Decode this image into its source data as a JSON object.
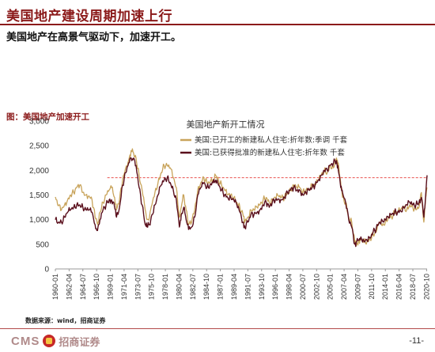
{
  "slide": {
    "title": "美国地产建设周期加速上行",
    "subtitle": "美国地产在高景气驱动下，加速开工。",
    "figure_caption": "图：美国地产加速开工",
    "source": "数据来源：wind，招商证券",
    "logo_text": "CMS",
    "logo_cn": "招商证券",
    "page_number": "-11-"
  },
  "colors": {
    "accent": "#8b1a1a",
    "series_starts": "#c8a35a",
    "series_permits": "#5a0f1c",
    "reference_line": "#e53935"
  },
  "chart_data": {
    "type": "line",
    "title": "美国地产新开工情况",
    "xlabel": "",
    "ylabel": "",
    "ylim": [
      0,
      3000
    ],
    "yticks": [
      "0",
      "500",
      "1,000",
      "1,500",
      "2,000",
      "2,500",
      "3,000"
    ],
    "xlim": [
      1960.0,
      2020.83
    ],
    "xtick_labels": [
      "1960-01",
      "1962-04",
      "1964-07",
      "1966-10",
      "1969-01",
      "1971-04",
      "1973-07",
      "1975-10",
      "1978-01",
      "1980-04",
      "1982-07",
      "1984-10",
      "1987-01",
      "1989-04",
      "1991-07",
      "1993-10",
      "1996-01",
      "1998-04",
      "2000-07",
      "2002-10",
      "2005-01",
      "2007-04",
      "2009-07",
      "2011-10",
      "2014-01",
      "2016-04",
      "2018-07",
      "2020-10"
    ],
    "reference_value": 1850,
    "grid": false,
    "legend_placement": "top-center",
    "series": [
      {
        "name": "美国:已开工的新建私人住宅:折年数:季调 千套",
        "color": "#c8a35a",
        "points": [
          [
            1960.0,
            1460
          ],
          [
            1960.5,
            1280
          ],
          [
            1961.0,
            1200
          ],
          [
            1961.5,
            1300
          ],
          [
            1962.0,
            1400
          ],
          [
            1962.5,
            1500
          ],
          [
            1963.0,
            1550
          ],
          [
            1963.5,
            1650
          ],
          [
            1964.0,
            1700
          ],
          [
            1964.5,
            1550
          ],
          [
            1965.0,
            1500
          ],
          [
            1965.5,
            1480
          ],
          [
            1966.0,
            1400
          ],
          [
            1966.5,
            1050
          ],
          [
            1966.9,
            900
          ],
          [
            1967.3,
            1150
          ],
          [
            1967.8,
            1350
          ],
          [
            1968.3,
            1500
          ],
          [
            1968.8,
            1600
          ],
          [
            1969.2,
            1650
          ],
          [
            1969.7,
            1450
          ],
          [
            1970.0,
            1200
          ],
          [
            1970.5,
            1400
          ],
          [
            1971.0,
            1800
          ],
          [
            1971.5,
            2050
          ],
          [
            1972.0,
            2200
          ],
          [
            1972.4,
            2400
          ],
          [
            1972.8,
            2350
          ],
          [
            1973.2,
            2250
          ],
          [
            1973.7,
            1900
          ],
          [
            1974.2,
            1600
          ],
          [
            1974.7,
            1200
          ],
          [
            1975.0,
            1000
          ],
          [
            1975.4,
            1050
          ],
          [
            1975.8,
            1300
          ],
          [
            1976.3,
            1550
          ],
          [
            1976.8,
            1750
          ],
          [
            1977.3,
            1950
          ],
          [
            1977.8,
            2100
          ],
          [
            1978.3,
            2100
          ],
          [
            1978.8,
            2050
          ],
          [
            1979.3,
            1850
          ],
          [
            1979.8,
            1650
          ],
          [
            1980.3,
            1050
          ],
          [
            1980.6,
            1250
          ],
          [
            1981.0,
            1500
          ],
          [
            1981.4,
            1200
          ],
          [
            1981.8,
            900
          ],
          [
            1982.3,
            950
          ],
          [
            1982.8,
            1200
          ],
          [
            1983.3,
            1600
          ],
          [
            1983.8,
            1750
          ],
          [
            1984.3,
            1850
          ],
          [
            1984.8,
            1750
          ],
          [
            1985.3,
            1750
          ],
          [
            1985.8,
            1800
          ],
          [
            1986.2,
            1900
          ],
          [
            1986.7,
            1800
          ],
          [
            1987.2,
            1700
          ],
          [
            1987.7,
            1600
          ],
          [
            1988.2,
            1500
          ],
          [
            1988.7,
            1500
          ],
          [
            1989.2,
            1450
          ],
          [
            1989.7,
            1350
          ],
          [
            1990.2,
            1250
          ],
          [
            1990.7,
            1100
          ],
          [
            1991.0,
            950
          ],
          [
            1991.5,
            1050
          ],
          [
            1992.0,
            1200
          ],
          [
            1992.5,
            1200
          ],
          [
            1993.0,
            1250
          ],
          [
            1993.5,
            1300
          ],
          [
            1994.0,
            1400
          ],
          [
            1994.5,
            1450
          ],
          [
            1995.0,
            1350
          ],
          [
            1995.5,
            1400
          ],
          [
            1996.0,
            1450
          ],
          [
            1996.5,
            1480
          ],
          [
            1997.0,
            1450
          ],
          [
            1997.5,
            1450
          ],
          [
            1998.0,
            1550
          ],
          [
            1998.5,
            1600
          ],
          [
            1999.0,
            1700
          ],
          [
            1999.5,
            1650
          ],
          [
            2000.0,
            1650
          ],
          [
            2000.5,
            1550
          ],
          [
            2001.0,
            1600
          ],
          [
            2001.5,
            1620
          ],
          [
            2002.0,
            1700
          ],
          [
            2002.5,
            1700
          ],
          [
            2003.0,
            1800
          ],
          [
            2003.5,
            1900
          ],
          [
            2004.0,
            2000
          ],
          [
            2004.5,
            1950
          ],
          [
            2005.0,
            2100
          ],
          [
            2005.5,
            2050
          ],
          [
            2006.0,
            2250
          ],
          [
            2006.3,
            2150
          ],
          [
            2006.7,
            1750
          ],
          [
            2007.0,
            1450
          ],
          [
            2007.5,
            1350
          ],
          [
            2008.0,
            1050
          ],
          [
            2008.5,
            950
          ],
          [
            2009.0,
            550
          ],
          [
            2009.3,
            520
          ],
          [
            2009.7,
            580
          ],
          [
            2010.0,
            600
          ],
          [
            2010.5,
            560
          ],
          [
            2011.0,
            560
          ],
          [
            2011.5,
            600
          ],
          [
            2012.0,
            700
          ],
          [
            2012.5,
            750
          ],
          [
            2013.0,
            950
          ],
          [
            2013.5,
            880
          ],
          [
            2014.0,
            950
          ],
          [
            2014.5,
            1050
          ],
          [
            2015.0,
            1050
          ],
          [
            2015.5,
            1150
          ],
          [
            2016.0,
            1150
          ],
          [
            2016.5,
            1200
          ],
          [
            2017.0,
            1250
          ],
          [
            2017.5,
            1200
          ],
          [
            2018.0,
            1300
          ],
          [
            2018.5,
            1250
          ],
          [
            2019.0,
            1200
          ],
          [
            2019.5,
            1250
          ],
          [
            2019.9,
            1550
          ],
          [
            2020.3,
            950
          ],
          [
            2020.6,
            1450
          ],
          [
            2020.83,
            1650
          ]
        ]
      },
      {
        "name": "美国:已获得批准的新建私人住宅:折年数 千套",
        "color": "#5a0f1c",
        "points": [
          [
            1960.0,
            1000
          ],
          [
            1960.5,
            950
          ],
          [
            1961.0,
            950
          ],
          [
            1961.5,
            1050
          ],
          [
            1962.0,
            1150
          ],
          [
            1962.5,
            1200
          ],
          [
            1963.0,
            1250
          ],
          [
            1963.5,
            1300
          ],
          [
            1964.0,
            1300
          ],
          [
            1964.5,
            1250
          ],
          [
            1965.0,
            1200
          ],
          [
            1965.5,
            1200
          ],
          [
            1966.0,
            1150
          ],
          [
            1966.5,
            900
          ],
          [
            1966.9,
            780
          ],
          [
            1967.3,
            1000
          ],
          [
            1967.8,
            1200
          ],
          [
            1968.3,
            1300
          ],
          [
            1968.8,
            1400
          ],
          [
            1969.2,
            1400
          ],
          [
            1969.7,
            1250
          ],
          [
            1970.0,
            1050
          ],
          [
            1970.5,
            1250
          ],
          [
            1971.0,
            1700
          ],
          [
            1971.5,
            1950
          ],
          [
            1972.0,
            2150
          ],
          [
            1972.4,
            2250
          ],
          [
            1972.8,
            2250
          ],
          [
            1973.2,
            2100
          ],
          [
            1973.7,
            1650
          ],
          [
            1974.2,
            1300
          ],
          [
            1974.7,
            900
          ],
          [
            1975.0,
            850
          ],
          [
            1975.4,
            900
          ],
          [
            1975.8,
            1100
          ],
          [
            1976.3,
            1300
          ],
          [
            1976.8,
            1500
          ],
          [
            1977.3,
            1700
          ],
          [
            1977.8,
            1800
          ],
          [
            1978.3,
            1850
          ],
          [
            1978.8,
            1750
          ],
          [
            1979.3,
            1600
          ],
          [
            1979.8,
            1400
          ],
          [
            1980.3,
            850
          ],
          [
            1980.6,
            1100
          ],
          [
            1981.0,
            1250
          ],
          [
            1981.4,
            1000
          ],
          [
            1981.8,
            800
          ],
          [
            1982.3,
            850
          ],
          [
            1982.8,
            1050
          ],
          [
            1983.3,
            1500
          ],
          [
            1983.8,
            1650
          ],
          [
            1984.3,
            1750
          ],
          [
            1984.8,
            1650
          ],
          [
            1985.3,
            1700
          ],
          [
            1985.8,
            1750
          ],
          [
            1986.2,
            1800
          ],
          [
            1986.7,
            1700
          ],
          [
            1987.2,
            1600
          ],
          [
            1987.7,
            1500
          ],
          [
            1988.2,
            1450
          ],
          [
            1988.7,
            1450
          ],
          [
            1989.2,
            1400
          ],
          [
            1989.7,
            1300
          ],
          [
            1990.2,
            1150
          ],
          [
            1990.7,
            950
          ],
          [
            1991.0,
            850
          ],
          [
            1991.5,
            950
          ],
          [
            1992.0,
            1100
          ],
          [
            1992.5,
            1100
          ],
          [
            1993.0,
            1150
          ],
          [
            1993.5,
            1200
          ],
          [
            1994.0,
            1300
          ],
          [
            1994.5,
            1350
          ],
          [
            1995.0,
            1250
          ],
          [
            1995.5,
            1350
          ],
          [
            1996.0,
            1400
          ],
          [
            1996.5,
            1420
          ],
          [
            1997.0,
            1400
          ],
          [
            1997.5,
            1450
          ],
          [
            1998.0,
            1550
          ],
          [
            1998.5,
            1600
          ],
          [
            1999.0,
            1650
          ],
          [
            1999.5,
            1600
          ],
          [
            2000.0,
            1600
          ],
          [
            2000.5,
            1500
          ],
          [
            2001.0,
            1550
          ],
          [
            2001.5,
            1600
          ],
          [
            2002.0,
            1650
          ],
          [
            2002.5,
            1700
          ],
          [
            2003.0,
            1800
          ],
          [
            2003.5,
            1900
          ],
          [
            2004.0,
            2000
          ],
          [
            2004.5,
            2000
          ],
          [
            2005.0,
            2100
          ],
          [
            2005.5,
            2150
          ],
          [
            2006.0,
            2200
          ],
          [
            2006.3,
            2000
          ],
          [
            2006.7,
            1650
          ],
          [
            2007.0,
            1550
          ],
          [
            2007.5,
            1350
          ],
          [
            2008.0,
            1000
          ],
          [
            2008.5,
            850
          ],
          [
            2009.0,
            500
          ],
          [
            2009.3,
            550
          ],
          [
            2009.7,
            580
          ],
          [
            2010.0,
            650
          ],
          [
            2010.5,
            560
          ],
          [
            2011.0,
            580
          ],
          [
            2011.5,
            620
          ],
          [
            2012.0,
            750
          ],
          [
            2012.5,
            820
          ],
          [
            2013.0,
            950
          ],
          [
            2013.5,
            980
          ],
          [
            2014.0,
            1000
          ],
          [
            2014.5,
            1050
          ],
          [
            2015.0,
            1100
          ],
          [
            2015.5,
            1150
          ],
          [
            2016.0,
            1150
          ],
          [
            2016.5,
            1180
          ],
          [
            2017.0,
            1250
          ],
          [
            2017.5,
            1300
          ],
          [
            2018.0,
            1350
          ],
          [
            2018.5,
            1300
          ],
          [
            2019.0,
            1300
          ],
          [
            2019.5,
            1350
          ],
          [
            2019.9,
            1450
          ],
          [
            2020.3,
            1050
          ],
          [
            2020.6,
            1500
          ],
          [
            2020.83,
            1900
          ]
        ]
      }
    ]
  }
}
